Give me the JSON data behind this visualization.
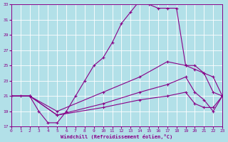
{
  "xlabel": "Windchill (Refroidissement éolien,°C)",
  "bg_color": "#b2e0e8",
  "grid_color": "#c8e8ec",
  "line_color": "#880088",
  "xmin": 0,
  "xmax": 23,
  "ymin": 17,
  "ymax": 33,
  "yticks": [
    17,
    19,
    21,
    23,
    25,
    27,
    29,
    31,
    33
  ],
  "xticks": [
    0,
    1,
    2,
    3,
    4,
    5,
    6,
    7,
    8,
    9,
    10,
    11,
    12,
    13,
    14,
    15,
    16,
    17,
    18,
    19,
    20,
    21,
    22,
    23
  ],
  "line1_x": [
    0,
    1,
    2,
    3,
    4,
    5,
    6,
    7,
    8,
    9,
    10,
    11,
    12,
    13,
    14,
    15,
    16,
    17,
    18,
    19,
    20,
    21,
    22,
    23
  ],
  "line1_y": [
    21.0,
    21.0,
    21.0,
    19.0,
    17.5,
    17.5,
    19.0,
    21.0,
    23.0,
    25.0,
    26.0,
    28.0,
    30.5,
    32.0,
    33.5,
    33.0,
    32.5,
    32.5,
    32.5,
    25.0,
    25.0,
    24.0,
    23.5,
    21.0
  ],
  "line2_x": [
    0,
    2,
    5,
    10,
    14,
    17,
    19,
    20,
    21,
    22,
    23
  ],
  "line2_y": [
    21.0,
    21.0,
    19.0,
    21.5,
    23.5,
    25.5,
    25.0,
    24.5,
    24.0,
    21.5,
    21.0
  ],
  "line3_x": [
    0,
    2,
    5,
    10,
    14,
    17,
    19,
    20,
    21,
    22,
    23
  ],
  "line3_y": [
    21.0,
    21.0,
    18.5,
    20.0,
    21.5,
    22.5,
    23.5,
    21.5,
    20.5,
    19.0,
    21.0
  ],
  "line4_x": [
    0,
    2,
    5,
    10,
    14,
    17,
    19,
    20,
    21,
    22,
    23
  ],
  "line4_y": [
    21.0,
    21.0,
    18.5,
    19.5,
    20.5,
    21.0,
    21.5,
    20.0,
    19.5,
    19.5,
    21.0
  ]
}
